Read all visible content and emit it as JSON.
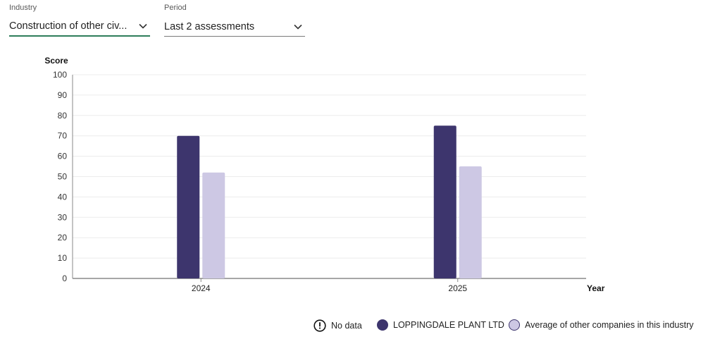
{
  "filters": {
    "industry": {
      "label": "Industry",
      "value": "Construction of other civ..."
    },
    "period": {
      "label": "Period",
      "value": "Last 2 assessments"
    }
  },
  "chart_data": {
    "type": "bar",
    "ylabel": "Score",
    "xlabel": "Year",
    "ylim": [
      0,
      100
    ],
    "yticks": [
      0,
      10,
      20,
      30,
      40,
      50,
      60,
      70,
      80,
      90,
      100
    ],
    "categories": [
      "2024",
      "2025"
    ],
    "grid": true,
    "legend_position": "bottom-right",
    "series": [
      {
        "name": "LOPPINGDALE PLANT LTD",
        "color": "#3d356d",
        "values": [
          70,
          75
        ]
      },
      {
        "name": "Average of other companies in this industry",
        "color": "#cdc8e4",
        "values": [
          52,
          55
        ]
      }
    ]
  },
  "legend": {
    "no_data_label": "No data",
    "icons": {
      "no_data": "exclamation-circle-icon"
    }
  },
  "colors": {
    "accent": "#2e7d5b",
    "axis": "#8a8a8a",
    "grid": "#ececec"
  }
}
